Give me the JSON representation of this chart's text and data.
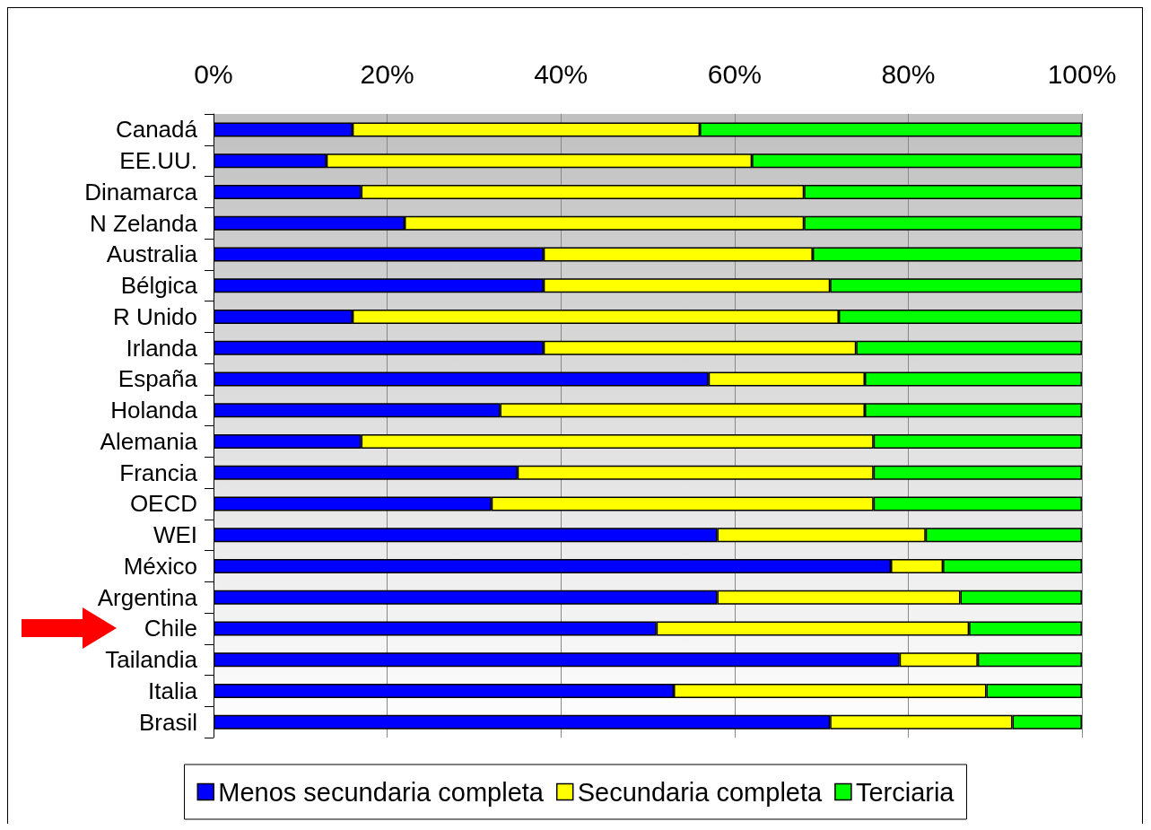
{
  "chart_data": {
    "type": "bar",
    "orientation": "horizontal",
    "stacked": true,
    "categories": [
      "Canadá",
      "EE.UU.",
      "Dinamarca",
      "N Zelanda",
      "Australia",
      "Bélgica",
      "R Unido",
      "Irlanda",
      "España",
      "Holanda",
      "Alemania",
      "Francia",
      "OECD",
      "WEI",
      "México",
      "Argentina",
      "Chile",
      "Tailandia",
      "Italia",
      "Brasil"
    ],
    "series": [
      {
        "name": "Menos secundaria completa",
        "color": "#0000ff",
        "values": [
          16,
          13,
          17,
          22,
          38,
          38,
          16,
          38,
          57,
          33,
          17,
          35,
          32,
          58,
          78,
          58,
          51,
          79,
          53,
          71
        ]
      },
      {
        "name": "Secundaria completa",
        "color": "#ffff00",
        "values": [
          40,
          49,
          51,
          46,
          31,
          33,
          56,
          36,
          18,
          42,
          59,
          41,
          44,
          24,
          6,
          28,
          36,
          9,
          36,
          21
        ]
      },
      {
        "name": "Terciaria",
        "color": "#00ff00",
        "values": [
          44,
          38,
          32,
          32,
          31,
          29,
          28,
          26,
          25,
          25,
          24,
          24,
          24,
          18,
          16,
          14,
          13,
          12,
          11,
          8
        ]
      }
    ],
    "xlim": [
      0,
      100
    ],
    "xticks": [
      {
        "value": 0,
        "label": "0%"
      },
      {
        "value": 20,
        "label": "20%"
      },
      {
        "value": 40,
        "label": "40%"
      },
      {
        "value": 60,
        "label": "60%"
      },
      {
        "value": 80,
        "label": "80%"
      },
      {
        "value": 100,
        "label": "100%"
      }
    ],
    "grid": "x",
    "legend": "bottom"
  }
}
